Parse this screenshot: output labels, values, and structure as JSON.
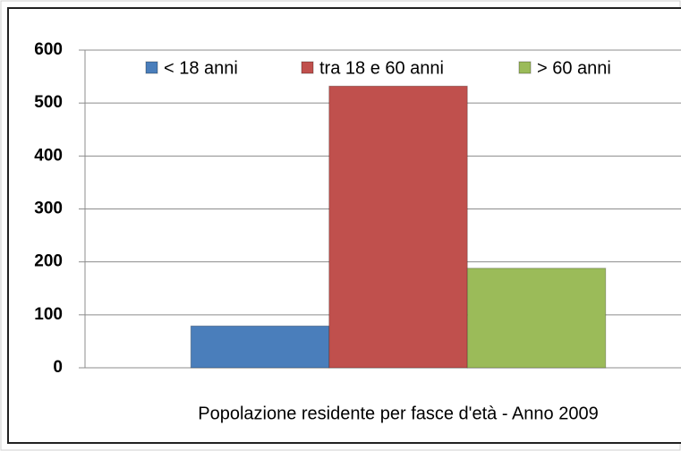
{
  "chart_data": {
    "type": "bar",
    "categories": [
      "Popolazione residente per fasce d'età - Anno 2009"
    ],
    "series": [
      {
        "name": "< 18 anni",
        "color": "#4a7ebb",
        "values": [
          79
        ]
      },
      {
        "name": "tra 18 e 60 anni",
        "color": "#c0504d",
        "values": [
          532
        ]
      },
      {
        "name": "> 60 anni",
        "color": "#9bbb59",
        "values": [
          188
        ]
      }
    ],
    "ylim": [
      0,
      600
    ],
    "yticks": [
      0,
      100,
      200,
      300,
      400,
      500,
      600
    ],
    "grid": true,
    "legend": "top"
  }
}
